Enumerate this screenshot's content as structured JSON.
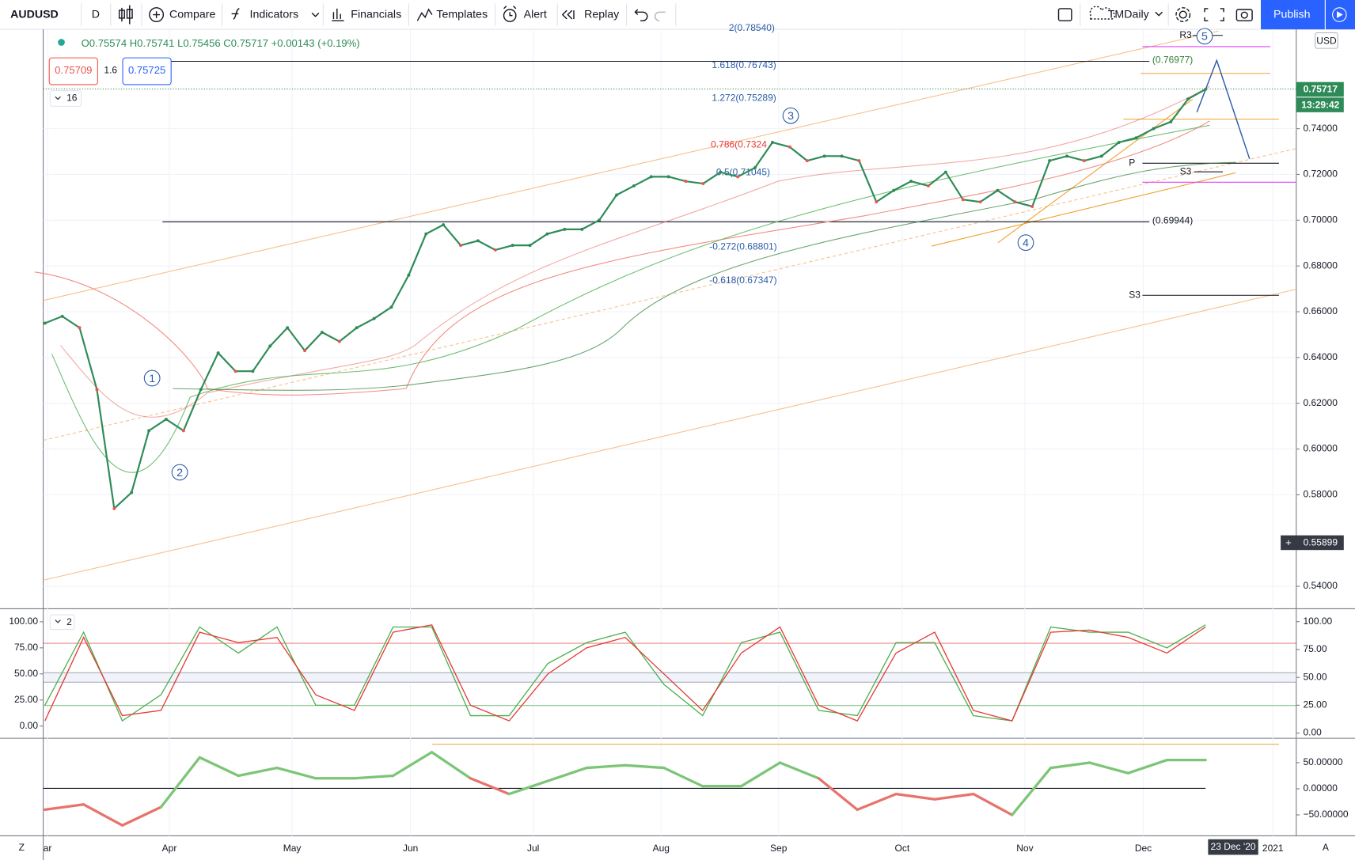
{
  "toolbar": {
    "interval": "D",
    "buttons": [
      "Compare",
      "Indicators",
      "Financials",
      "Templates",
      "Alert",
      "Replay"
    ],
    "layout": "TMDaily",
    "publish": "Publish"
  },
  "legend": {
    "ohlc": "O0.75574 H0.75741 L0.75456 C0.75717 +0.00143 (+0.19%)",
    "bid": "0.75709",
    "spread": "1.6",
    "ask": "0.75725",
    "indicator_count": "16",
    "stoch_count": "2"
  },
  "currency": "USD",
  "price_badges": {
    "last": "0.75717",
    "countdown": "13:29:42",
    "cursor": "0.55899"
  },
  "time_axis": [
    "ar",
    "Apr",
    "May",
    "Jun",
    "Jul",
    "Aug",
    "Sep",
    "Oct",
    "Nov",
    "Dec",
    "2021"
  ],
  "time_cursor": "23 Dec '20",
  "corner_labels": [
    "Z",
    "A"
  ],
  "annotations": [
    "2(0.78540)",
    "1.618(0.76743)",
    "1.272(0.75289)",
    "0.786(0.7324",
    "0.5(0.71045)",
    "-0.272(0.68801)",
    "-0.618(0.67347)",
    "(0.76977)",
    "(0.69944)",
    "R3",
    "P",
    "S3",
    "S3"
  ],
  "waves": [
    "1",
    "2",
    "3",
    "4",
    "5"
  ],
  "chart_data": [
    {
      "type": "line",
      "grid": true,
      "ylim": [
        0.5302,
        0.7834
      ],
      "yticks": [
        {
          "value": 0.54,
          "label": "0.54000"
        },
        {
          "value": 0.58,
          "label": "0.58000"
        },
        {
          "value": 0.6,
          "label": "0.60000"
        },
        {
          "value": 0.62,
          "label": "0.62000"
        },
        {
          "value": 0.64,
          "label": "0.64000"
        },
        {
          "value": 0.66,
          "label": "0.66000"
        },
        {
          "value": 0.68,
          "label": "0.68000"
        },
        {
          "value": 0.7,
          "label": "0.70000"
        },
        {
          "value": 0.72,
          "label": "0.72000"
        },
        {
          "value": 0.74,
          "label": "0.74000"
        }
      ],
      "series": [
        {
          "name": "AUDUSD",
          "color": "#2e8b57",
          "values": [
            0.655,
            0.658,
            0.653,
            0.626,
            0.574,
            0.581,
            0.608,
            0.613,
            0.608,
            0.626,
            0.642,
            0.634,
            0.634,
            0.645,
            0.653,
            0.643,
            0.651,
            0.647,
            0.653,
            0.657,
            0.662,
            0.676,
            0.694,
            0.698,
            0.689,
            0.691,
            0.687,
            0.689,
            0.689,
            0.694,
            0.696,
            0.696,
            0.7,
            0.711,
            0.715,
            0.719,
            0.719,
            0.717,
            0.716,
            0.721,
            0.719,
            0.723,
            0.734,
            0.732,
            0.726,
            0.728,
            0.728,
            0.726,
            0.708,
            0.713,
            0.717,
            0.715,
            0.721,
            0.709,
            0.708,
            0.713,
            0.708,
            0.706,
            0.726,
            0.728,
            0.726,
            0.728,
            0.734,
            0.736,
            0.74,
            0.743,
            0.753,
            0.75717
          ]
        }
      ]
    },
    {
      "type": "line",
      "ylim": [
        -11.67,
        112.5
      ],
      "yticks": [
        {
          "value": 100,
          "label": "100.00"
        },
        {
          "value": 75,
          "label": "75.00"
        },
        {
          "value": 50,
          "label": "50.00"
        },
        {
          "value": 25,
          "label": "25.00"
        },
        {
          "value": 0,
          "label": "0.00"
        }
      ],
      "y2lim": [
        -4.65,
        111.6
      ],
      "y2ticks": [
        {
          "value": 100,
          "label": "100.00"
        },
        {
          "value": 75,
          "label": "75.00"
        },
        {
          "value": 50,
          "label": "50.00"
        },
        {
          "value": 25,
          "label": "25.00"
        },
        {
          "value": 0,
          "label": "0.00"
        }
      ],
      "series": [
        {
          "color": "#4caf50",
          "values": [
            20,
            90,
            5,
            30,
            95,
            70,
            95,
            20,
            20,
            95,
            95,
            10,
            10,
            60,
            80,
            90,
            40,
            10,
            80,
            90,
            15,
            10,
            80,
            80,
            10,
            5,
            95,
            90,
            90,
            75,
            97
          ]
        },
        {
          "color": "#e53935",
          "values": [
            5,
            85,
            10,
            15,
            90,
            80,
            85,
            30,
            15,
            90,
            97,
            20,
            5,
            50,
            75,
            85,
            50,
            15,
            70,
            95,
            20,
            5,
            70,
            90,
            15,
            5,
            90,
            92,
            85,
            70,
            95
          ]
        }
      ]
    },
    {
      "type": "line",
      "ylim": [
        -90,
        96.7
      ],
      "yticks": [
        {
          "value": 50,
          "label": "50.00000"
        },
        {
          "value": 0,
          "label": "0.00000"
        },
        {
          "value": -50,
          "label": "−50.00000"
        }
      ],
      "series": [
        {
          "color": "#7cc576",
          "negative_color": "#e8736c",
          "values": [
            -40,
            -30,
            -70,
            -35,
            60,
            25,
            40,
            20,
            20,
            25,
            70,
            20,
            -10,
            15,
            40,
            45,
            40,
            5,
            5,
            50,
            20,
            -40,
            -10,
            -20,
            -10,
            -50,
            40,
            50,
            30,
            55,
            55
          ]
        }
      ]
    }
  ]
}
